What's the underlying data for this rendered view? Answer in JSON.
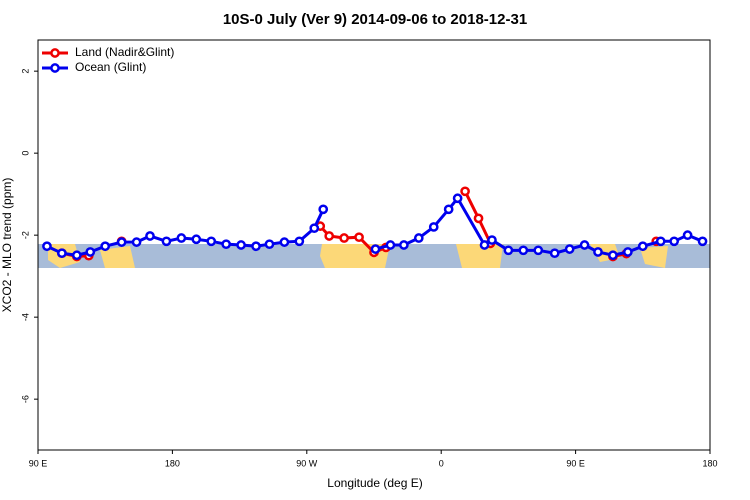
{
  "chart_data": {
    "type": "line",
    "title": "10S-0 July (Ver 9)   2014-09-06 to 2018-12-31",
    "x_label": "Longitude (deg E)",
    "y_label": "XCO2 - MLO trend (ppm)",
    "xlim": [
      90,
      540
    ],
    "ylim": [
      -7.24,
      2.76
    ],
    "xticks": [
      {
        "value": 90,
        "label": "90 E"
      },
      180,
      {
        "value": 270,
        "label": "90 W"
      },
      {
        "value": 360,
        "label": "0"
      },
      {
        "value": 450,
        "label": "90 E"
      },
      {
        "value": 540,
        "label": "180"
      }
    ],
    "yticks": [
      2,
      0,
      -2,
      -4,
      -6
    ],
    "legend": "top-left",
    "series": [
      {
        "name": "Land (Nadir&Glint)",
        "color": "#ee0000",
        "x": [
          106,
          116,
          124,
          null,
          146,
          null,
          279,
          285,
          295,
          305,
          315,
          323,
          null,
          376,
          385,
          393,
          null,
          475,
          484,
          null,
          504
        ],
        "values": [
          -2.44,
          -2.52,
          -2.5,
          null,
          -2.15,
          null,
          -1.78,
          -2.02,
          -2.07,
          -2.05,
          -2.42,
          -2.3,
          null,
          -0.93,
          -1.59,
          -2.2,
          null,
          -2.52,
          -2.45,
          null,
          -2.15
        ]
      },
      {
        "name": "Ocean (Glint)",
        "color": "#0000ee",
        "x": [
          96,
          106,
          116,
          125,
          135,
          146,
          156,
          165,
          176,
          186,
          196,
          206,
          216,
          226,
          236,
          245,
          255,
          265,
          275,
          281,
          null,
          316,
          326,
          335,
          345,
          355,
          365,
          371,
          389,
          394,
          405,
          415,
          425,
          436,
          446,
          456,
          465,
          475,
          485,
          495,
          507,
          516,
          525,
          535
        ],
        "values": [
          -2.27,
          -2.44,
          -2.49,
          -2.41,
          -2.27,
          -2.17,
          -2.17,
          -2.02,
          -2.15,
          -2.07,
          -2.1,
          -2.15,
          -2.22,
          -2.24,
          -2.27,
          -2.22,
          -2.17,
          -2.15,
          -1.83,
          -1.37,
          null,
          -2.34,
          -2.24,
          -2.24,
          -2.07,
          -1.8,
          -1.37,
          -1.1,
          -2.24,
          -2.12,
          -2.37,
          -2.37,
          -2.37,
          -2.44,
          -2.34,
          -2.24,
          -2.41,
          -2.49,
          -2.41,
          -2.27,
          -2.15,
          -2.15,
          -2.0,
          -2.15
        ]
      }
    ]
  }
}
